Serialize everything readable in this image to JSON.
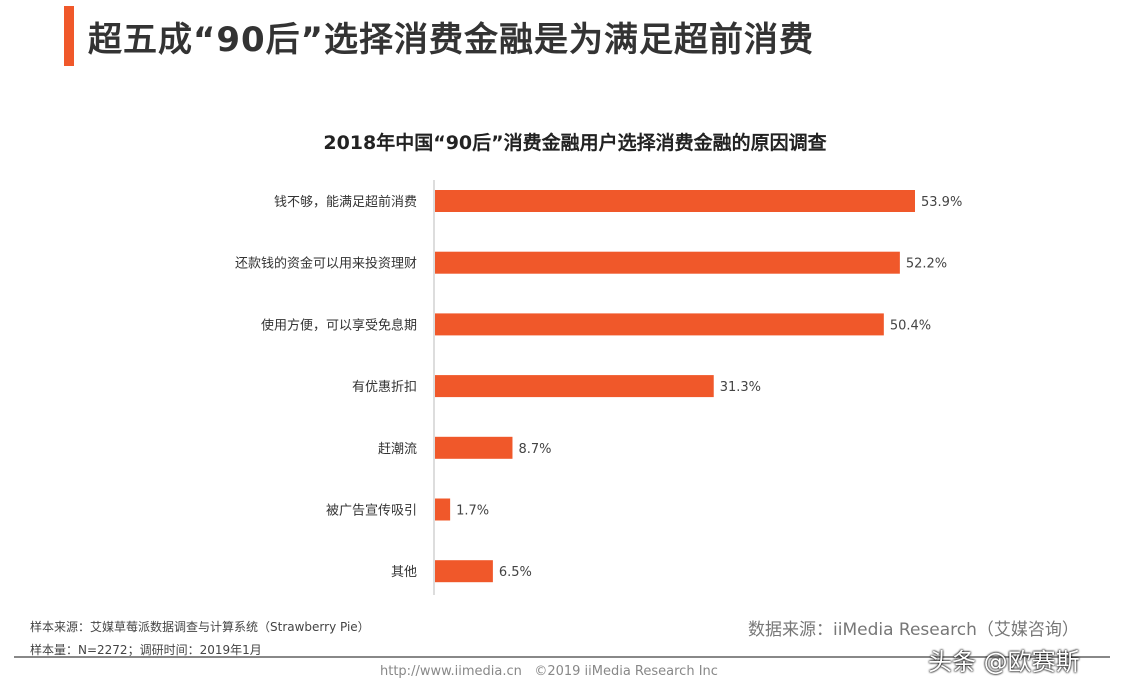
{
  "header": {
    "title": "超五成“90后”选择消费金融是为满足超前消费",
    "accent_color": "#f0582a"
  },
  "chart_data": {
    "type": "bar",
    "orientation": "horizontal",
    "title": "2018年中国“90后”消费金融用户选择消费金融的原因调查",
    "categories": [
      "钱不够，能满足超前消费",
      "还款钱的资金可以用来投资理财",
      "使用方便，可以享受免息期",
      "有优惠折扣",
      "赶潮流",
      "被广告宣传吸引",
      "其他"
    ],
    "values": [
      53.9,
      52.2,
      50.4,
      31.3,
      8.7,
      1.7,
      6.5
    ],
    "data_labels": [
      "53.9%",
      "52.2%",
      "50.4%",
      "31.3%",
      "8.7%",
      "1.7%",
      "6.5%"
    ],
    "unit": "%",
    "bar_color": "#f0582a",
    "grid": false
  },
  "footer": {
    "sample_source": "样本来源：艾媒草莓派数据调查与计算系统（Strawberry Pie）",
    "sample_size": "样本量：N=2272；调研时间：2019年1月",
    "data_source": "数据来源：iiMedia Research（艾媒咨询）",
    "url": "http://www.iimedia.cn",
    "copyright": "©2019 iiMedia Research Inc",
    "watermark": "头条 @欧赛斯"
  }
}
